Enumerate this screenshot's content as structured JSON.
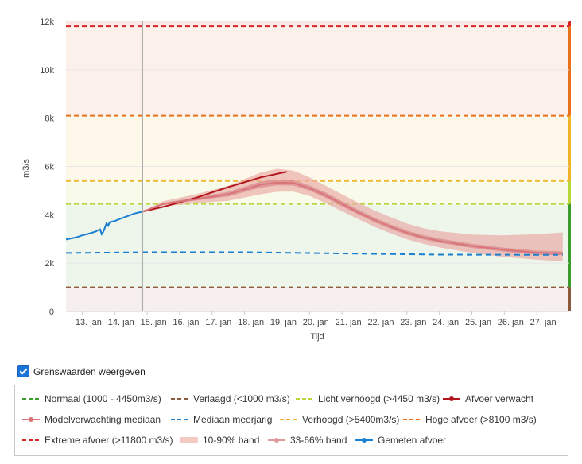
{
  "chart_data": {
    "type": "line",
    "ylabel": "m3/s",
    "xlabel": "Tijd",
    "ylim": [
      0,
      12000
    ],
    "yticks": [
      0,
      2000,
      4000,
      6000,
      8000,
      10000,
      12000
    ],
    "ytick_labels": [
      "0",
      "2k",
      "4k",
      "6k",
      "8k",
      "10k",
      "12k"
    ],
    "xlim": [
      12.5,
      28.0
    ],
    "xticks": [
      13,
      14,
      15,
      16,
      17,
      18,
      19,
      20,
      21,
      22,
      23,
      24,
      25,
      26,
      27
    ],
    "xtick_labels": [
      "13. jan",
      "14. jan",
      "15. jan",
      "16. jan",
      "17. jan",
      "18. jan",
      "19. jan",
      "20. jan",
      "21. jan",
      "22. jan",
      "23. jan",
      "24. jan",
      "25. jan",
      "26. jan",
      "27. jan"
    ],
    "now_x": 14.85,
    "grid": true,
    "thresholds": [
      {
        "name": "Extreme afvoer",
        "value": 11800,
        "color": "#d62728"
      },
      {
        "name": "Hoge afvoer",
        "value": 8100,
        "color": "#e8711a"
      },
      {
        "name": "Verhoogd",
        "value": 5400,
        "color": "#f0b429"
      },
      {
        "name": "Licht verhoogd",
        "value": 4450,
        "color": "#b8d636"
      },
      {
        "name": "Verlaagd",
        "value": 1000,
        "color": "#8b5a3c"
      }
    ],
    "zones": [
      {
        "from": 11800,
        "to": 12000,
        "color": "#fbe7e7",
        "bar": "#d62728"
      },
      {
        "from": 8100,
        "to": 11800,
        "color": "#fcf1ea",
        "bar": "#e8711a"
      },
      {
        "from": 5400,
        "to": 8100,
        "color": "#fdf8ea",
        "bar": "#f0b429"
      },
      {
        "from": 4450,
        "to": 5400,
        "color": "#f8fbea",
        "bar": "#b8d636"
      },
      {
        "from": 1000,
        "to": 4450,
        "color": "#eef6ec",
        "bar": "#3a9a2c"
      },
      {
        "from": 0,
        "to": 1000,
        "color": "#f6efed",
        "bar": "#8b5a3c"
      }
    ],
    "series": [
      {
        "name": "Gemeten afvoer",
        "color": "#1a7fd0",
        "x": [
          12.5,
          12.8,
          13.0,
          13.2,
          13.4,
          13.55,
          13.6,
          13.65,
          13.75,
          13.8,
          13.85,
          14.0,
          14.2,
          14.4,
          14.6,
          14.85
        ],
        "y": [
          2980,
          3060,
          3150,
          3220,
          3300,
          3400,
          3200,
          3300,
          3650,
          3550,
          3700,
          3740,
          3850,
          3950,
          4050,
          4130
        ]
      },
      {
        "name": "Afvoer verwacht",
        "color": "#b3141b",
        "x": [
          14.85,
          15.5,
          16.5,
          17.5,
          18.5,
          19.3
        ],
        "y": [
          4130,
          4330,
          4700,
          5150,
          5550,
          5780
        ]
      },
      {
        "name": "Modelverwachting mediaan",
        "color": "#d9747a",
        "x": [
          14.85,
          15.5,
          16.5,
          17.5,
          18.5,
          19.0,
          19.5,
          20.0,
          20.5,
          21.0,
          21.5,
          22.0,
          22.5,
          23.0,
          23.5,
          24.0,
          25.0,
          26.0,
          27.0,
          27.8
        ],
        "y": [
          4130,
          4450,
          4650,
          4850,
          5250,
          5330,
          5320,
          5100,
          4800,
          4450,
          4100,
          3780,
          3500,
          3250,
          3060,
          2920,
          2710,
          2550,
          2430,
          2400
        ]
      },
      {
        "name": "Mediaan meerjarig",
        "color": "#1a7fd0",
        "dashed": true,
        "x": [
          12.5,
          15.0,
          18.0,
          21.0,
          24.0,
          27.8
        ],
        "y": [
          2420,
          2450,
          2450,
          2400,
          2350,
          2340
        ]
      }
    ],
    "bands": [
      {
        "name": "10-90% band",
        "color": "#e9aca6",
        "x": [
          14.85,
          15.5,
          16.5,
          17.5,
          18.5,
          19.0,
          19.5,
          20.0,
          20.5,
          21.0,
          21.5,
          22.0,
          22.5,
          23.0,
          23.5,
          24.0,
          25.0,
          26.0,
          27.0,
          27.8
        ],
        "lower": [
          4130,
          4350,
          4480,
          4580,
          4850,
          4950,
          4960,
          4780,
          4480,
          4150,
          3820,
          3500,
          3230,
          2990,
          2800,
          2650,
          2420,
          2250,
          2140,
          2070
        ],
        "upper": [
          4130,
          4560,
          4850,
          5200,
          5750,
          5900,
          5830,
          5550,
          5200,
          4850,
          4500,
          4180,
          3900,
          3640,
          3450,
          3320,
          3180,
          3150,
          3200,
          3270
        ]
      },
      {
        "name": "33-66% band",
        "color": "#d8878a",
        "x": [
          14.85,
          15.5,
          16.5,
          17.5,
          18.5,
          19.0,
          19.5,
          20.0,
          20.5,
          21.0,
          21.5,
          22.0,
          22.5,
          23.0,
          23.5,
          24.0,
          25.0,
          26.0,
          27.0,
          27.8
        ],
        "lower": [
          4130,
          4420,
          4590,
          4760,
          5130,
          5220,
          5210,
          5000,
          4700,
          4350,
          4010,
          3690,
          3410,
          3170,
          2980,
          2840,
          2630,
          2470,
          2350,
          2320
        ],
        "upper": [
          4130,
          4490,
          4720,
          4950,
          5380,
          5450,
          5430,
          5220,
          4920,
          4560,
          4210,
          3880,
          3600,
          3350,
          3160,
          3020,
          2800,
          2640,
          2520,
          2490
        ]
      }
    ]
  },
  "toggle": {
    "label": "Grenswaarden weergeven",
    "checked": true
  },
  "legend": [
    {
      "label": "Normaal (1000 - 4450m3/s)",
      "color": "#3a9a2c",
      "style": "dash"
    },
    {
      "label": "Verlaagd (<1000 m3/s)",
      "color": "#8b5a3c",
      "style": "dash"
    },
    {
      "label": "Licht verhoogd (>4450 m3/s)",
      "color": "#b8d636",
      "style": "dash"
    },
    {
      "label": "Afvoer verwacht",
      "color": "#b3141b",
      "style": "dot"
    },
    {
      "label": "Modelverwachting mediaan",
      "color": "#d9747a",
      "style": "dot"
    },
    {
      "label": "Mediaan meerjarig",
      "color": "#1a7fd0",
      "style": "dash"
    },
    {
      "label": "Verhoogd (>5400m3/s)",
      "color": "#f0b429",
      "style": "dash"
    },
    {
      "label": "Hoge afvoer (>8100 m3/s)",
      "color": "#e8711a",
      "style": "dash"
    },
    {
      "label": "Extreme afvoer (>11800 m3/s)",
      "color": "#d62728",
      "style": "dash"
    },
    {
      "label": "10-90% band",
      "color": "#f2c9c3",
      "style": "band"
    },
    {
      "label": "33-66% band",
      "color": "#e0999b",
      "style": "dot"
    },
    {
      "label": "Gemeten afvoer",
      "color": "#1a7fd0",
      "style": "dot"
    }
  ]
}
